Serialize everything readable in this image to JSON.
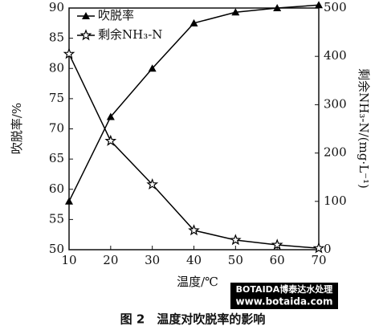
{
  "chart_data": {
    "type": "line",
    "caption": "图 2　温度对吹脱率的影响",
    "watermark": [
      "BOTAIDA博泰达水处理",
      "www.botaida.com"
    ],
    "xlabel": "温度/℃",
    "ylabel": "吹脱率/%",
    "y2label": "剩余NH₃-N/(mg·L⁻¹)",
    "x": [
      10,
      20,
      30,
      40,
      50,
      60,
      70
    ],
    "xlim": [
      10,
      70
    ],
    "xticks": [
      10,
      20,
      30,
      40,
      50,
      60,
      70
    ],
    "ylim": [
      50,
      90
    ],
    "yticks": [
      50,
      55,
      60,
      65,
      70,
      75,
      80,
      85,
      90
    ],
    "y2lim": [
      0,
      500
    ],
    "y2ticks": [
      0,
      100,
      200,
      300,
      400,
      500
    ],
    "legend": "upper left",
    "series": [
      {
        "name": "吹脱率",
        "color": "#000000",
        "marker": "triangle",
        "values": [
          58,
          72,
          80,
          87.5,
          89.3,
          90,
          90.5
        ]
      },
      {
        "name": "剩余NH₃-N",
        "color": "#000000",
        "marker": "star",
        "axis": "y2",
        "values": [
          405,
          225,
          135,
          40,
          20,
          10,
          3
        ]
      }
    ]
  }
}
